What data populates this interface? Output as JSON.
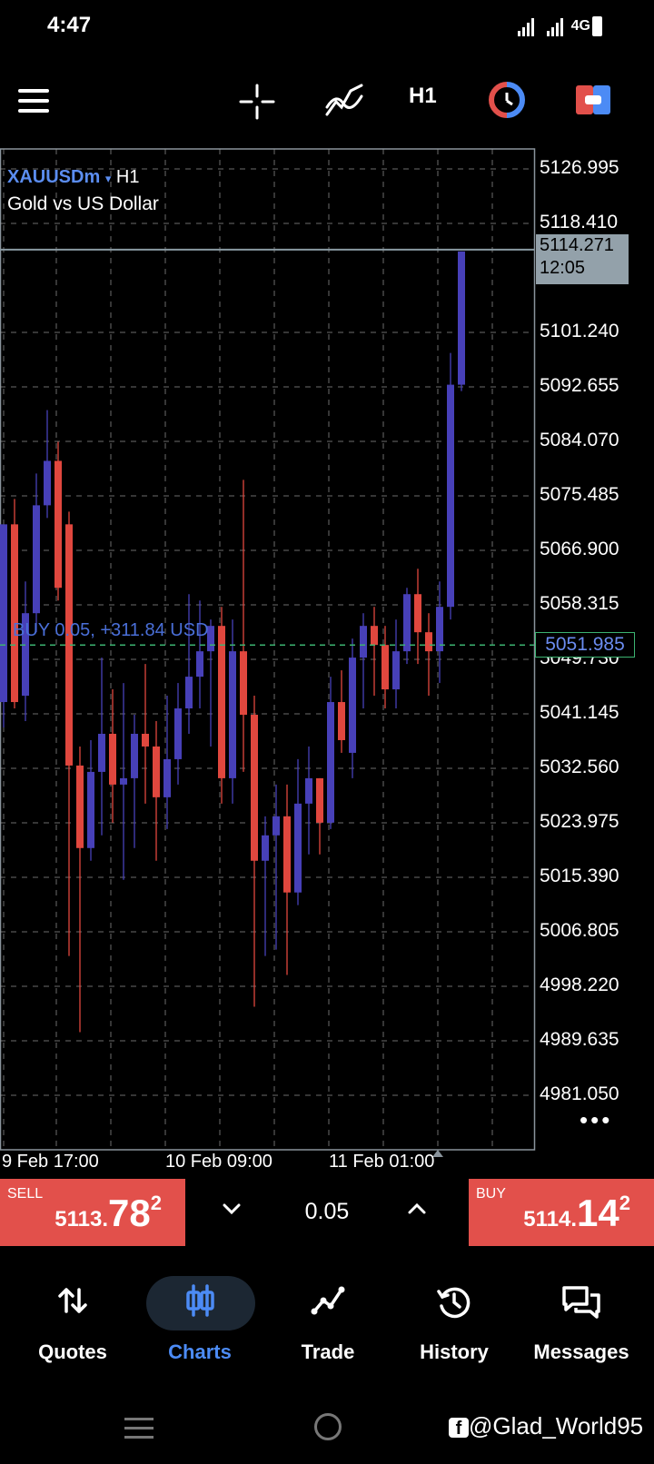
{
  "status_bar": {
    "time": "4:47",
    "network": "4G"
  },
  "toolbar": {
    "timeframe": "H1"
  },
  "chart": {
    "symbol": "XAUUSDm",
    "symbol_timeframe": "H1",
    "description": "Gold vs US Dollar",
    "position_label": "BUY 0.05,   +311.84 USD",
    "current_price": "5114.271",
    "bar_countdown": "12:05",
    "bid_price": "5051.985",
    "more": "•••",
    "price_axis": [
      "5126.995",
      "5118.410",
      "5101.240",
      "5092.655",
      "5084.070",
      "5075.485",
      "5066.900",
      "5058.315",
      "5049.730",
      "5041.145",
      "5032.560",
      "5023.975",
      "5015.390",
      "5006.805",
      "4998.220",
      "4989.635",
      "4981.050"
    ],
    "time_axis": [
      "9 Feb 17:00",
      "10 Feb 09:00",
      "11 Feb 01:00"
    ]
  },
  "chart_data": {
    "type": "candlestick",
    "symbol": "XAUUSDm",
    "timeframe": "H1",
    "ylim": [
      4973,
      5135
    ],
    "up_color": "#4740b8",
    "down_color": "#e0473e",
    "candles": [
      {
        "o": 5043,
        "h": 5071,
        "l": 5039,
        "c": 5071
      },
      {
        "o": 5071,
        "h": 5075,
        "l": 5042,
        "c": 5043
      },
      {
        "o": 5044,
        "h": 5062,
        "l": 5040,
        "c": 5057
      },
      {
        "o": 5057,
        "h": 5079,
        "l": 5054,
        "c": 5074
      },
      {
        "o": 5074,
        "h": 5089,
        "l": 5072,
        "c": 5081
      },
      {
        "o": 5081,
        "h": 5084,
        "l": 5059,
        "c": 5061
      },
      {
        "o": 5071,
        "h": 5073,
        "l": 5003,
        "c": 5033
      },
      {
        "o": 5033,
        "h": 5036,
        "l": 4991,
        "c": 5020
      },
      {
        "o": 5020,
        "h": 5037,
        "l": 5018,
        "c": 5032
      },
      {
        "o": 5032,
        "h": 5050,
        "l": 5022,
        "c": 5038
      },
      {
        "o": 5038,
        "h": 5045,
        "l": 5024,
        "c": 5030
      },
      {
        "o": 5030,
        "h": 5046,
        "l": 5015,
        "c": 5031
      },
      {
        "o": 5031,
        "h": 5041,
        "l": 5020,
        "c": 5038
      },
      {
        "o": 5038,
        "h": 5049,
        "l": 5027,
        "c": 5036
      },
      {
        "o": 5036,
        "h": 5040,
        "l": 5018,
        "c": 5028
      },
      {
        "o": 5028,
        "h": 5044,
        "l": 5023,
        "c": 5034
      },
      {
        "o": 5034,
        "h": 5046,
        "l": 5030,
        "c": 5042
      },
      {
        "o": 5042,
        "h": 5060,
        "l": 5038,
        "c": 5047
      },
      {
        "o": 5047,
        "h": 5059,
        "l": 5042,
        "c": 5051
      },
      {
        "o": 5051,
        "h": 5056,
        "l": 5036,
        "c": 5055
      },
      {
        "o": 5055,
        "h": 5058,
        "l": 5027,
        "c": 5031
      },
      {
        "o": 5031,
        "h": 5056,
        "l": 5027,
        "c": 5051
      },
      {
        "o": 5051,
        "h": 5078,
        "l": 5032,
        "c": 5041
      },
      {
        "o": 5041,
        "h": 5044,
        "l": 4995,
        "c": 5018
      },
      {
        "o": 5018,
        "h": 5025,
        "l": 5003,
        "c": 5022
      },
      {
        "o": 5022,
        "h": 5030,
        "l": 5004,
        "c": 5025
      },
      {
        "o": 5025,
        "h": 5030,
        "l": 5000,
        "c": 5013
      },
      {
        "o": 5013,
        "h": 5034,
        "l": 5011,
        "c": 5027
      },
      {
        "o": 5027,
        "h": 5036,
        "l": 5019,
        "c": 5031
      },
      {
        "o": 5031,
        "h": 5031,
        "l": 5019,
        "c": 5024
      },
      {
        "o": 5024,
        "h": 5047,
        "l": 5023,
        "c": 5043
      },
      {
        "o": 5043,
        "h": 5048,
        "l": 5035,
        "c": 5037
      },
      {
        "o": 5035,
        "h": 5053,
        "l": 5031,
        "c": 5050
      },
      {
        "o": 5050,
        "h": 5057,
        "l": 5042,
        "c": 5055
      },
      {
        "o": 5055,
        "h": 5058,
        "l": 5044,
        "c": 5052
      },
      {
        "o": 5052,
        "h": 5055,
        "l": 5042,
        "c": 5045
      },
      {
        "o": 5045,
        "h": 5056,
        "l": 5042,
        "c": 5051
      },
      {
        "o": 5051,
        "h": 5061,
        "l": 5049,
        "c": 5060
      },
      {
        "o": 5060,
        "h": 5064,
        "l": 5049,
        "c": 5054
      },
      {
        "o": 5054,
        "h": 5057,
        "l": 5044,
        "c": 5051
      },
      {
        "o": 5051,
        "h": 5062,
        "l": 5046,
        "c": 5058
      },
      {
        "o": 5058,
        "h": 5098,
        "l": 5056,
        "c": 5093
      },
      {
        "o": 5093,
        "h": 5114,
        "l": 5092,
        "c": 5114
      }
    ]
  },
  "trade_bar": {
    "sell_label": "SELL",
    "sell_price_small": "5113.",
    "sell_price_large": "78",
    "sell_price_sup": "2",
    "lot": "0.05",
    "buy_label": "BUY",
    "buy_price_small": "5114.",
    "buy_price_large": "14",
    "buy_price_sup": "2"
  },
  "bottom_nav": {
    "items": [
      {
        "label": "Quotes",
        "icon": "quotes-arrows-icon"
      },
      {
        "label": "Charts",
        "icon": "candles-icon",
        "active": true
      },
      {
        "label": "Trade",
        "icon": "trade-line-icon"
      },
      {
        "label": "History",
        "icon": "history-icon"
      },
      {
        "label": "Messages",
        "icon": "messages-icon"
      }
    ],
    "active_color": "#4c8bf5"
  },
  "watermark": "@Glad_World95"
}
